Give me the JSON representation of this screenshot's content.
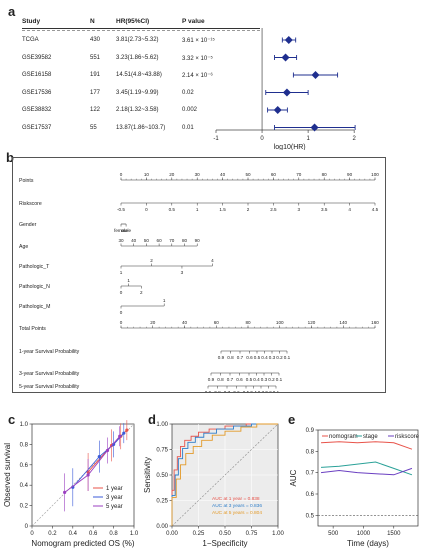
{
  "panel_labels": {
    "a": "a",
    "b": "b",
    "c": "c",
    "d": "d",
    "e": "e"
  },
  "forest": {
    "headers": {
      "study": "Study",
      "n": "N",
      "hr": "HR(95%CI)",
      "p": "P value"
    },
    "rows": [
      {
        "study": "TCGA",
        "n": "430",
        "hr": "3.81(2.73~5.32)",
        "p": "3.61 × 10⁻¹⁵",
        "log_hr": 0.58,
        "log_lo": 0.44,
        "log_hi": 0.73
      },
      {
        "study": "GSE39582",
        "n": "551",
        "hr": "3.23(1.86~5.62)",
        "p": "3.32 × 10⁻⁵",
        "log_hr": 0.51,
        "log_lo": 0.27,
        "log_hi": 0.75
      },
      {
        "study": "GSE16158",
        "n": "191",
        "hr": "14.51(4.8~43.88)",
        "p": "2.14 × 10⁻⁶",
        "log_hr": 1.16,
        "log_lo": 0.68,
        "log_hi": 1.64
      },
      {
        "study": "GSE17536",
        "n": "177",
        "hr": "3.45(1.19~9.99)",
        "p": "0.02",
        "log_hr": 0.54,
        "log_lo": 0.08,
        "log_hi": 1.0
      },
      {
        "study": "GSE38832",
        "n": "122",
        "hr": "2.18(1.32~3.58)",
        "p": "0.002",
        "log_hr": 0.34,
        "log_lo": 0.12,
        "log_hi": 0.55
      },
      {
        "study": "GSE17537",
        "n": "55",
        "hr": "13.87(1.86~103.7)",
        "p": "0.01",
        "log_hr": 1.14,
        "log_lo": 0.27,
        "log_hi": 2.02
      }
    ],
    "axis": {
      "ticks": [
        "-1",
        "0",
        "1",
        "2"
      ],
      "xlabel": "log10(HR)",
      "xlim": [
        -1,
        2.3
      ]
    }
  },
  "nomogram": {
    "rows": [
      {
        "label": "Points",
        "ticks": [
          "0",
          "10",
          "20",
          "30",
          "40",
          "50",
          "60",
          "70",
          "80",
          "90",
          "100"
        ]
      },
      {
        "label": "Riskscore",
        "ticks": [
          "-0.5",
          "0",
          "0.5",
          "1",
          "1.5",
          "2",
          "2.5",
          "3",
          "3.5",
          "4",
          "4.5"
        ]
      },
      {
        "label": "Gender",
        "ticks": [
          "female",
          "male"
        ]
      },
      {
        "label": "Age",
        "ticks": [
          "30",
          "40",
          "50",
          "60",
          "70",
          "80",
          "90"
        ]
      },
      {
        "label": "Pathologic_T",
        "ticks": [
          "1",
          "2",
          "3",
          "4"
        ]
      },
      {
        "label": "Pathologic_N",
        "ticks": [
          "0",
          "1",
          "2"
        ]
      },
      {
        "label": "Pathologic_M",
        "ticks": [
          "0",
          "1"
        ]
      },
      {
        "label": "Total Points",
        "ticks": [
          "0",
          "20",
          "40",
          "60",
          "80",
          "100",
          "120",
          "140",
          "160"
        ]
      },
      {
        "label": "1-year Survival Probability",
        "ticks": [
          "0.9",
          "0.8",
          "0.7",
          "0.6",
          "0.5",
          "0.4",
          "0.3",
          "0.2",
          "0.1"
        ]
      },
      {
        "label": "3-year Survival Probability",
        "ticks": [
          "0.9",
          "0.8",
          "0.7",
          "0.6",
          "0.5",
          "0.4",
          "0.3",
          "0.2",
          "0.1"
        ]
      },
      {
        "label": "5-year Survival Probability",
        "ticks": [
          "0.9",
          "0.8",
          "0.7",
          "0.6",
          "0.5",
          "0.4",
          "0.3",
          "0.2",
          "0.1"
        ]
      }
    ]
  },
  "chart_data": [
    {
      "type": "line",
      "panel": "c",
      "xlabel": "Nomogram predicted OS (%)",
      "ylabel": "Observed survival",
      "xlim": [
        0,
        1
      ],
      "ylim": [
        0,
        1
      ],
      "x_ticks": [
        "0",
        "0.2",
        "0.4",
        "0.6",
        "0.8",
        "1.0"
      ],
      "y_ticks": [
        "0",
        "0.2",
        "0.4",
        "0.6",
        "0.8",
        "1.0"
      ],
      "legend_position": "bottom-right",
      "colors": {
        "1 year": "#e8534a",
        "3 year": "#3b5bd9",
        "5 year": "#9b3fc1"
      },
      "series": [
        {
          "name": "1 year",
          "x": [
            0.55,
            0.78,
            0.87,
            0.93
          ],
          "y": [
            0.53,
            0.79,
            0.88,
            0.94
          ]
        },
        {
          "name": "3 year",
          "x": [
            0.4,
            0.66,
            0.8,
            0.9
          ],
          "y": [
            0.38,
            0.68,
            0.8,
            0.91
          ]
        },
        {
          "name": "5 year",
          "x": [
            0.32,
            0.55,
            0.74,
            0.86
          ],
          "y": [
            0.33,
            0.5,
            0.74,
            0.88
          ]
        }
      ]
    },
    {
      "type": "line",
      "panel": "d",
      "xlabel": "1−Specificity",
      "ylabel": "Sensitivity",
      "xlim": [
        0,
        1
      ],
      "ylim": [
        0,
        1
      ],
      "x_ticks": [
        "0.00",
        "0.25",
        "0.50",
        "0.75",
        "1.00"
      ],
      "y_ticks": [
        "0.00",
        "0.25",
        "0.50",
        "0.75",
        "1.00"
      ],
      "legend": [
        "AUC at 1 year = 0.838",
        "AUC at 3 years = 0.836",
        "AUC at 5 years = 0.804"
      ],
      "colors": {
        "1 year": "#e8534a",
        "3 years": "#2e7dc8",
        "5 years": "#e39a29"
      },
      "series": [
        {
          "name": "AUC at 1 year = 0.838",
          "x": [
            0,
            0.02,
            0.05,
            0.08,
            0.12,
            0.18,
            0.25,
            0.35,
            0.5,
            0.7,
            1
          ],
          "y": [
            0,
            0.35,
            0.55,
            0.68,
            0.78,
            0.84,
            0.88,
            0.92,
            0.95,
            0.98,
            1
          ]
        },
        {
          "name": "AUC at 3 years = 0.836",
          "x": [
            0,
            0.03,
            0.06,
            0.1,
            0.15,
            0.22,
            0.3,
            0.42,
            0.58,
            0.75,
            1
          ],
          "y": [
            0,
            0.3,
            0.5,
            0.66,
            0.76,
            0.82,
            0.87,
            0.91,
            0.95,
            0.98,
            1
          ]
        },
        {
          "name": "AUC at 5 years = 0.804",
          "x": [
            0,
            0.04,
            0.08,
            0.13,
            0.2,
            0.28,
            0.38,
            0.5,
            0.65,
            0.8,
            1
          ],
          "y": [
            0,
            0.28,
            0.46,
            0.6,
            0.71,
            0.78,
            0.84,
            0.89,
            0.93,
            0.97,
            1
          ]
        }
      ]
    },
    {
      "type": "line",
      "panel": "e",
      "xlabel": "Time (days)",
      "ylabel": "AUC",
      "xlim": [
        250,
        1900
      ],
      "ylim": [
        0.45,
        0.9
      ],
      "x_ticks": [
        "500",
        "1000",
        "1500"
      ],
      "y_ticks": [
        "0.5",
        "0.6",
        "0.7",
        "0.8",
        "0.9"
      ],
      "colors": {
        "nomogram": "#e8534a",
        "stage": "#2aa198",
        "riskscore": "#6a3fc1"
      },
      "series": [
        {
          "name": "nomogram",
          "x": [
            300,
            600,
            900,
            1200,
            1500,
            1800
          ],
          "y": [
            0.84,
            0.845,
            0.84,
            0.845,
            0.84,
            0.81
          ]
        },
        {
          "name": "stage",
          "x": [
            300,
            600,
            900,
            1200,
            1500,
            1800
          ],
          "y": [
            0.725,
            0.73,
            0.74,
            0.75,
            0.72,
            0.69
          ]
        },
        {
          "name": "riskscore",
          "x": [
            300,
            600,
            900,
            1200,
            1500,
            1800
          ],
          "y": [
            0.7,
            0.71,
            0.7,
            0.695,
            0.69,
            0.72
          ]
        }
      ],
      "reference_line": 0.5
    }
  ]
}
